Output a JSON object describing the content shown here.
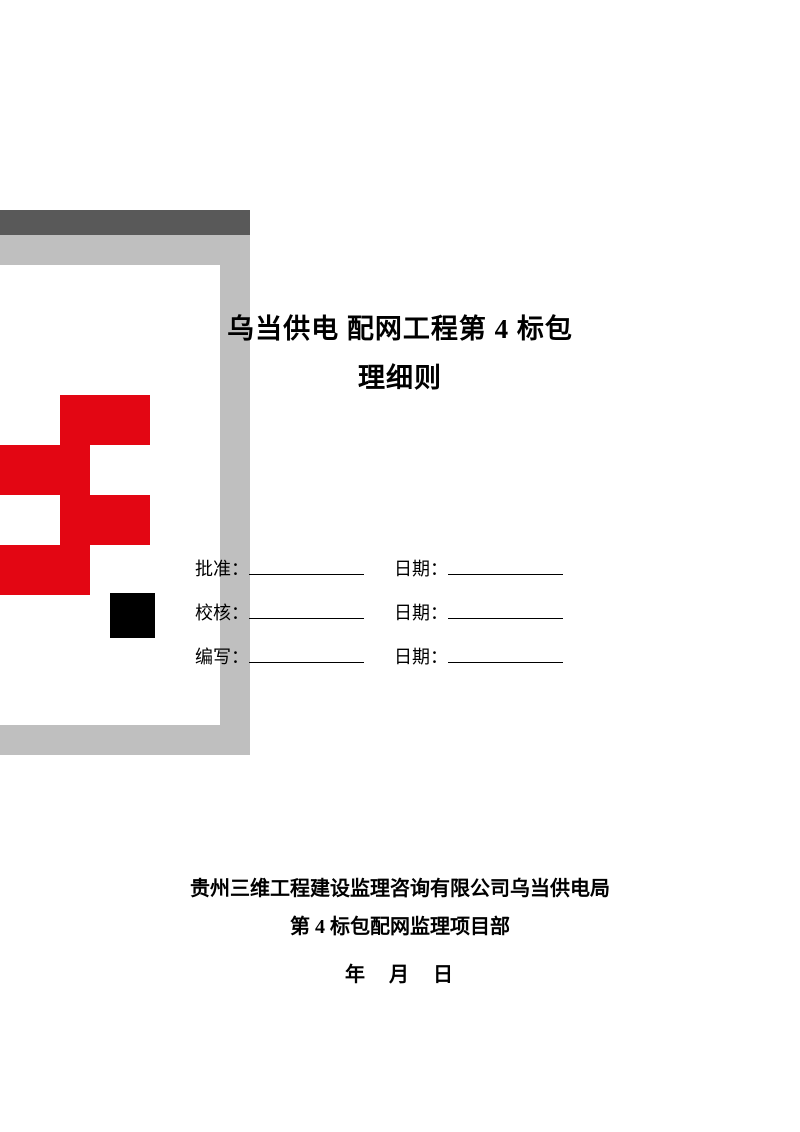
{
  "title": {
    "line1": "乌当供电   配网工程第 4 标包",
    "line2": "   理细则"
  },
  "signoff": {
    "rows": [
      {
        "label": "批准：",
        "date_label": "日期："
      },
      {
        "label": "校核：",
        "date_label": "日期："
      },
      {
        "label": "编写：",
        "date_label": "日期："
      }
    ]
  },
  "footer": {
    "line1": "贵州三维工程建设监理咨询有限公司乌当供电局",
    "line2": "第 4 标包配网监理项目部",
    "date": "年　月　日"
  },
  "colors": {
    "dark_bar": "#595959",
    "gray_frame": "#bfbfbf",
    "red": "#e30613",
    "black": "#000000",
    "white": "#ffffff"
  }
}
